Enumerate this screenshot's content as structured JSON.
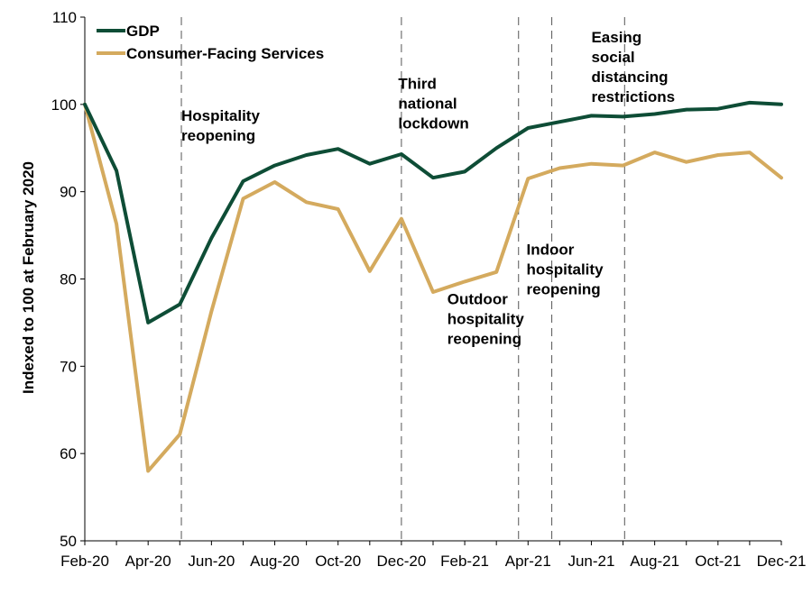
{
  "chart_data": {
    "type": "line",
    "title": "",
    "xlabel": "",
    "ylabel": "Indexed to 100 at February 2020",
    "ylim": [
      50,
      110
    ],
    "yticks": [
      50,
      60,
      70,
      80,
      90,
      100,
      110
    ],
    "grid": false,
    "legend_position": "top-left",
    "x": [
      "Feb-20",
      "Mar-20",
      "Apr-20",
      "May-20",
      "Jun-20",
      "Jul-20",
      "Aug-20",
      "Sep-20",
      "Oct-20",
      "Nov-20",
      "Dec-20",
      "Jan-21",
      "Feb-21",
      "Mar-21",
      "Apr-21",
      "May-21",
      "Jun-21",
      "Jul-21",
      "Aug-21",
      "Sep-21",
      "Oct-21",
      "Nov-21",
      "Dec-21"
    ],
    "xtick_labels": [
      "Feb-20",
      "Apr-20",
      "Jun-20",
      "Aug-20",
      "Oct-20",
      "Dec-20",
      "Feb-21",
      "Apr-21",
      "Jun-21",
      "Aug-21",
      "Oct-21",
      "Dec-21"
    ],
    "series": [
      {
        "name": "GDP",
        "color": "#0e4d36",
        "values": [
          100,
          92.4,
          75.0,
          77.1,
          84.7,
          91.2,
          93.0,
          94.2,
          94.9,
          93.2,
          94.3,
          91.6,
          92.3,
          95.0,
          97.3,
          98.0,
          98.7,
          98.6,
          98.9,
          99.4,
          99.5,
          100.2,
          100.0
        ]
      },
      {
        "name": "Consumer-Facing Services",
        "color": "#d4aa5e",
        "values": [
          100,
          86.3,
          58.0,
          62.2,
          76.3,
          89.2,
          91.1,
          88.8,
          88.0,
          80.9,
          86.9,
          78.5,
          79.7,
          80.8,
          91.5,
          92.7,
          93.2,
          93.0,
          94.5,
          93.4,
          94.2,
          94.5,
          91.6
        ]
      }
    ],
    "annotations": [
      {
        "lines": [
          "Hospitality",
          "reopening"
        ],
        "x_at": 3.05,
        "y_at": 98.1
      },
      {
        "lines": [
          "Third",
          "national",
          "lockdown"
        ],
        "x_at": 9.9,
        "y_at": 101.8
      },
      {
        "lines": [
          "Outdoor",
          "hospitality",
          "reopening"
        ],
        "x_at": 11.45,
        "y_at": 77.1
      },
      {
        "lines": [
          "Indoor",
          "hospitality",
          "reopening"
        ],
        "x_at": 13.95,
        "y_at": 82.8
      },
      {
        "lines": [
          "Easing",
          "social",
          "distancing",
          "restrictions"
        ],
        "x_at": 16.0,
        "y_at": 107.1
      }
    ],
    "vlines_x": [
      3.05,
      10.0,
      13.7,
      14.75,
      17.05
    ]
  }
}
